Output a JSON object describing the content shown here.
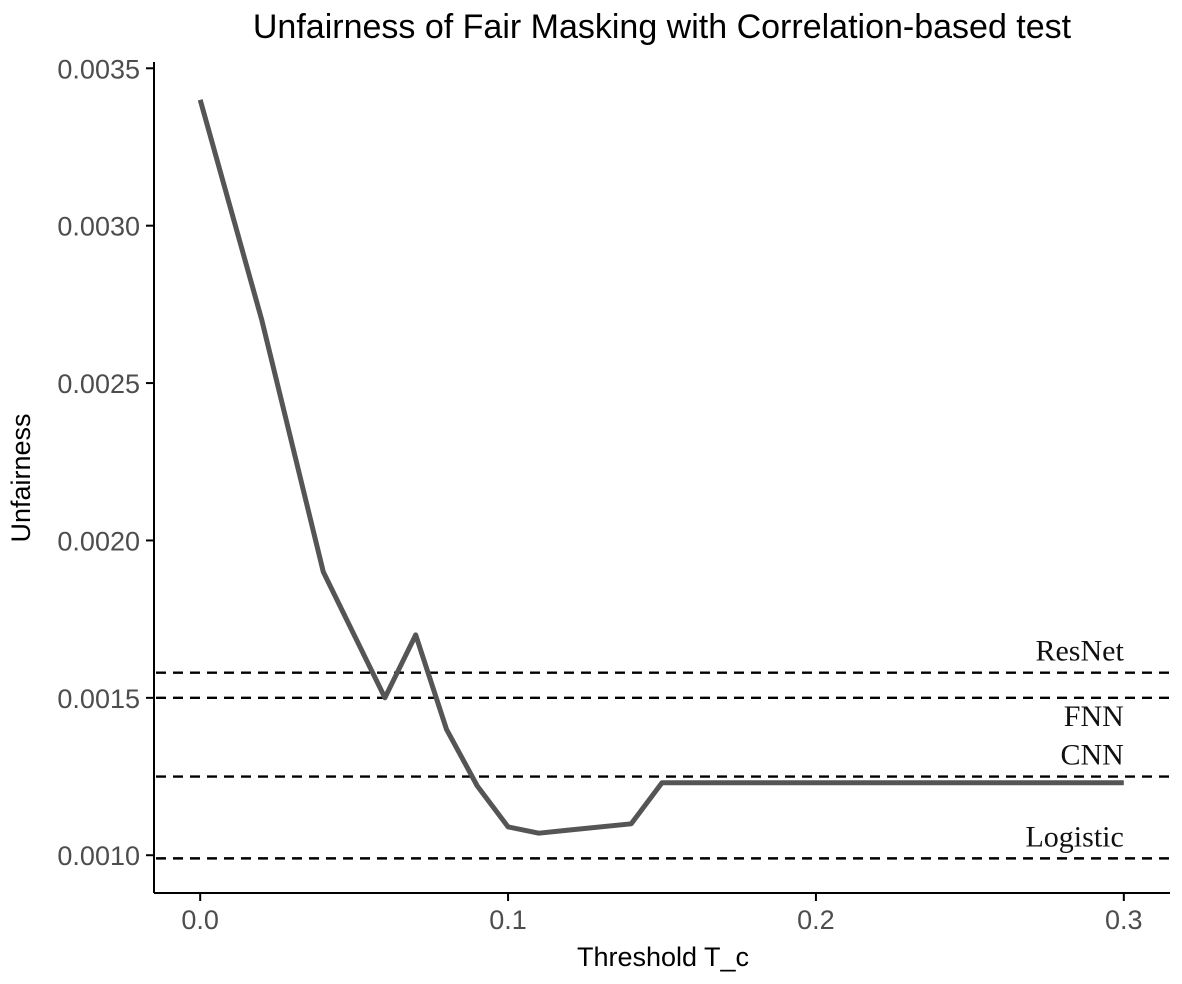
{
  "chart_data": {
    "type": "line",
    "title": "Unfairness of Fair Masking with Correlation-based test",
    "xlabel": "Threshold T_c",
    "ylabel": "Unfairness",
    "xlim": [
      -0.015,
      0.315
    ],
    "ylim": [
      0.00088,
      0.00352
    ],
    "x_ticks": [
      0.0,
      0.1,
      0.2,
      0.3
    ],
    "x_tick_labels": [
      "0.0",
      "0.1",
      "0.2",
      "0.3"
    ],
    "y_ticks": [
      0.001,
      0.0015,
      0.002,
      0.0025,
      0.003,
      0.0035
    ],
    "y_tick_labels": [
      "0.0010",
      "0.0015",
      "0.0020",
      "0.0025",
      "0.0030",
      "0.0035"
    ],
    "grid": false,
    "series": [
      {
        "color": "#555555",
        "x": [
          0.0,
          0.02,
          0.04,
          0.06,
          0.07,
          0.08,
          0.09,
          0.1,
          0.11,
          0.12,
          0.14,
          0.15,
          0.2,
          0.3
        ],
        "y": [
          0.0034,
          0.0027,
          0.0019,
          0.0015,
          0.0017,
          0.0014,
          0.00122,
          0.00109,
          0.00107,
          0.00108,
          0.0011,
          0.00123,
          0.00123,
          0.00123
        ]
      }
    ],
    "reference_lines": [
      {
        "label": "ResNet",
        "y": 0.00158
      },
      {
        "label": "FNN",
        "y": 0.0015
      },
      {
        "label": "CNN",
        "y": 0.00125
      },
      {
        "label": "Logistic",
        "y": 0.00099
      }
    ]
  }
}
